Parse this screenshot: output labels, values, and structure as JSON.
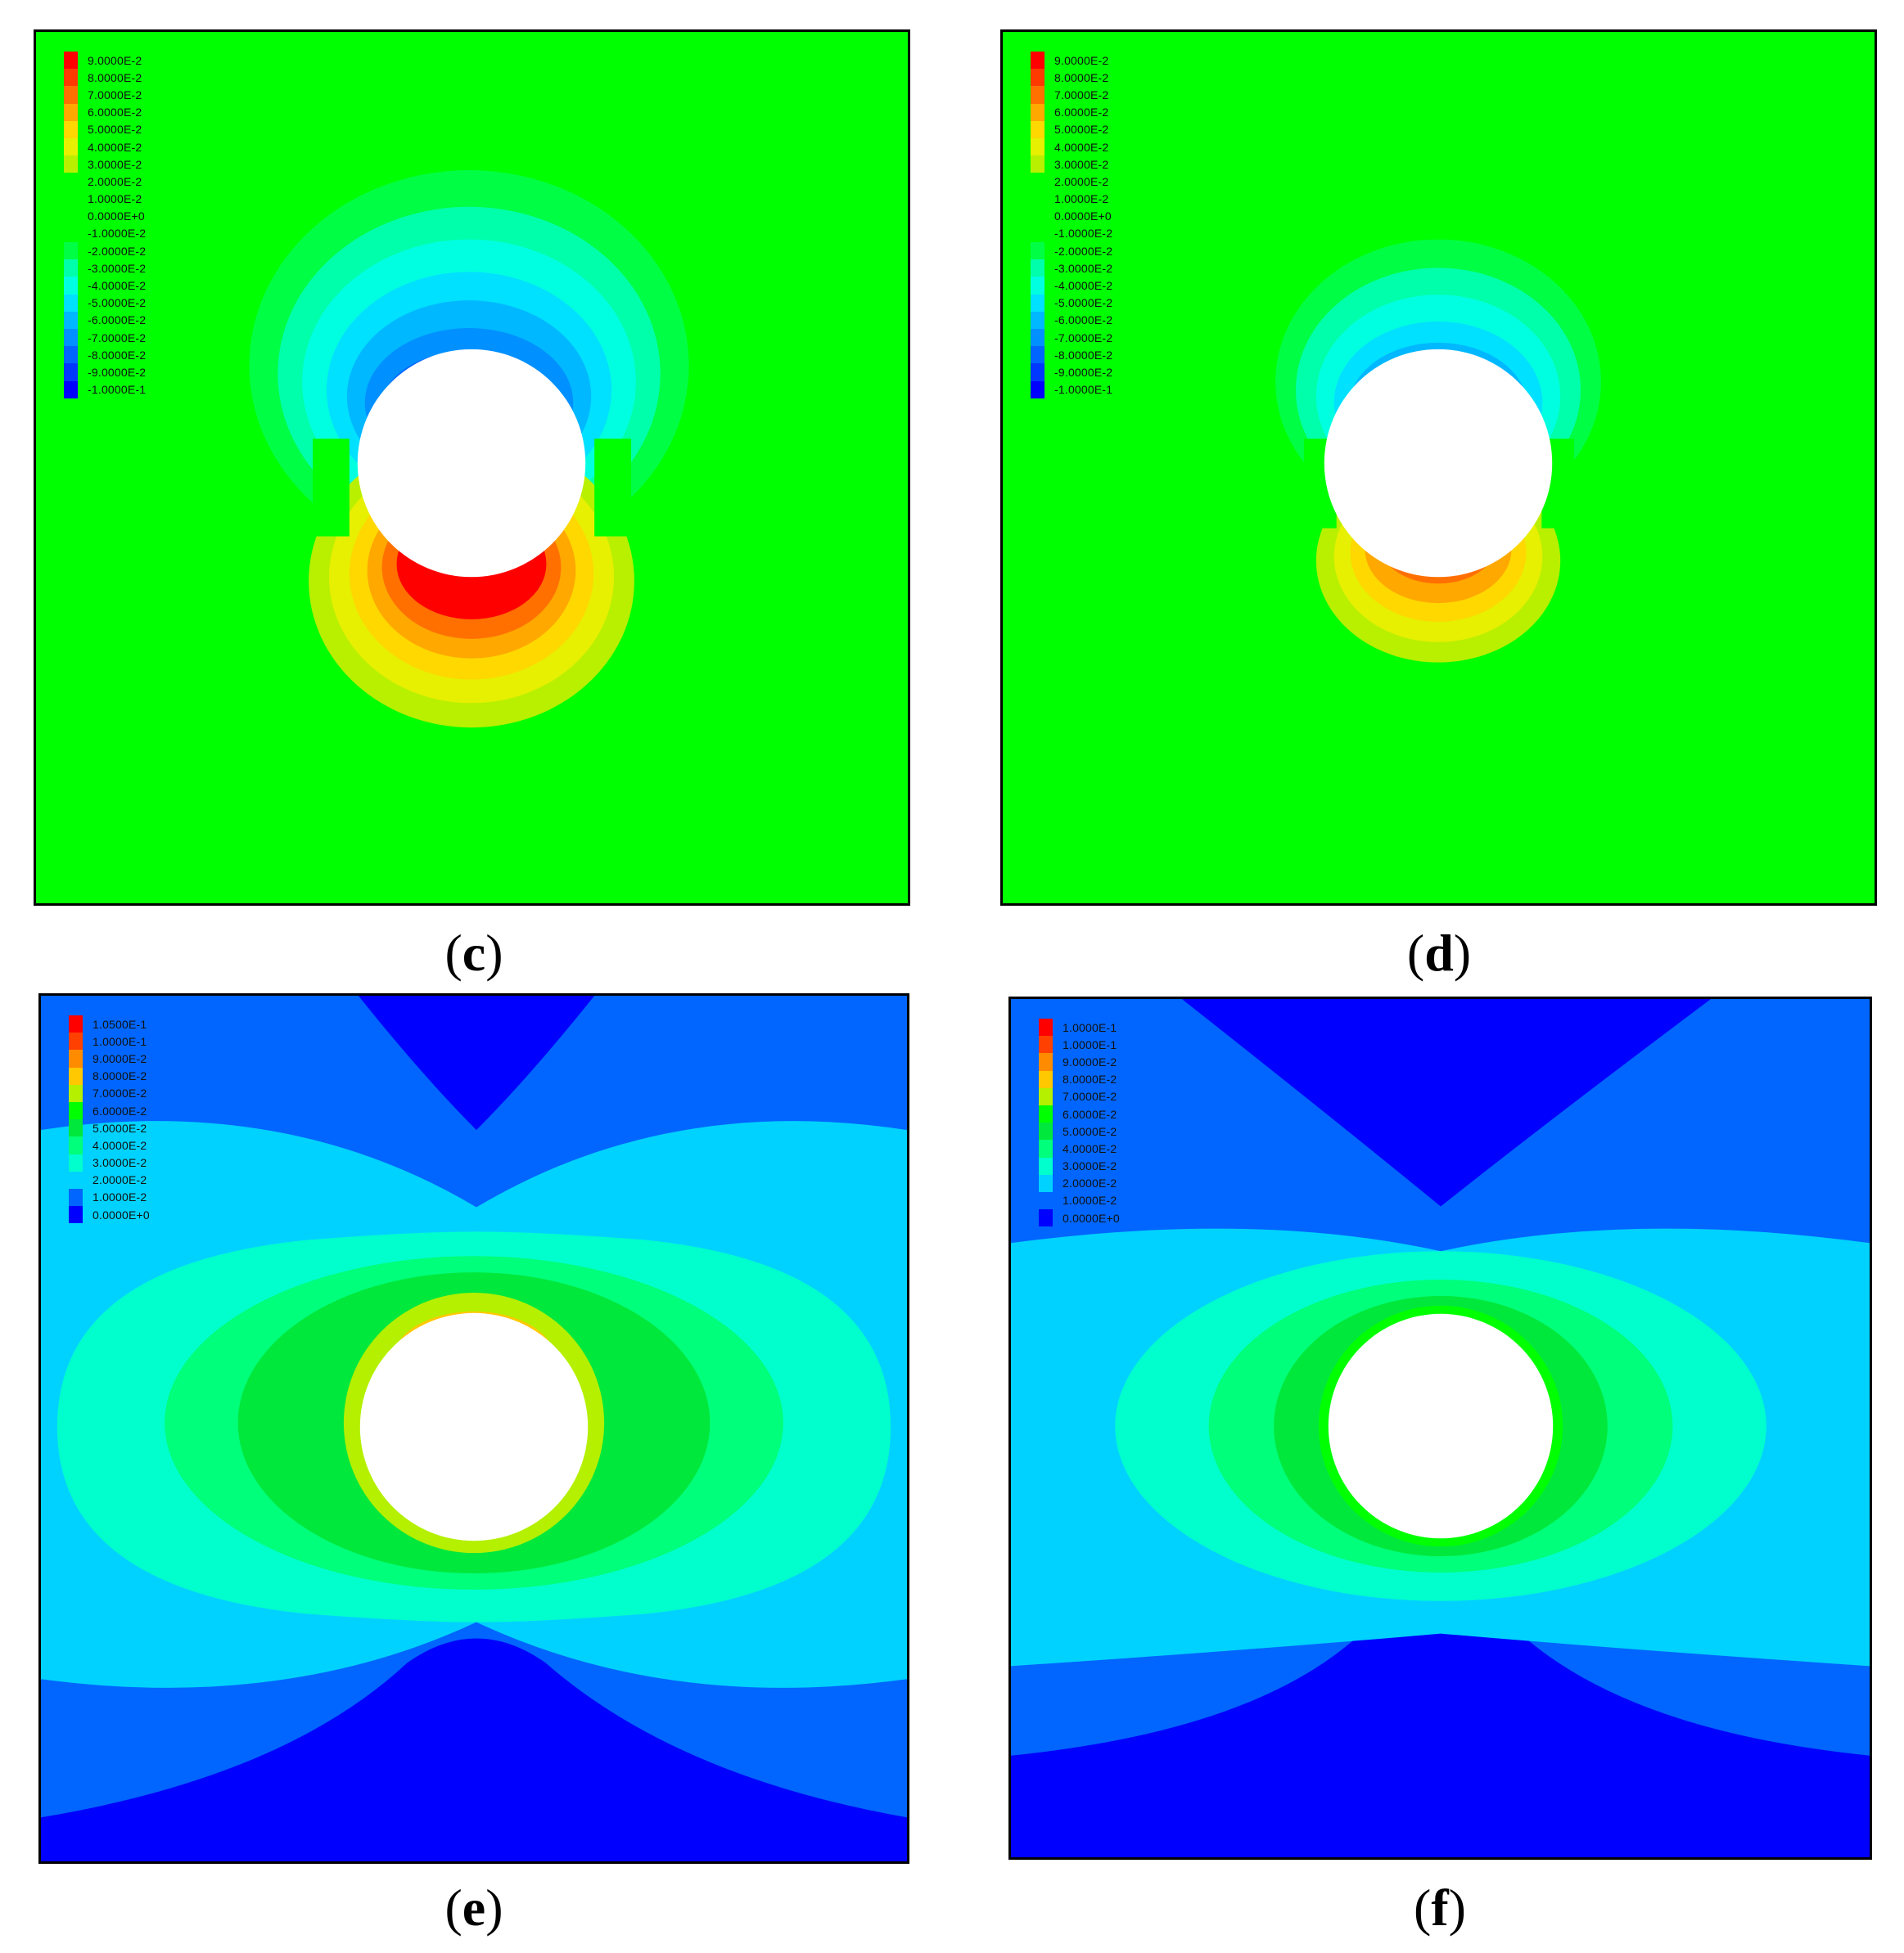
{
  "panels": [
    {
      "id": "c",
      "caption_letter": "c",
      "legend": [
        {
          "label": "9.0000E-2",
          "color": "#ff0000"
        },
        {
          "label": "8.0000E-2",
          "color": "#ff3a00"
        },
        {
          "label": "7.0000E-2",
          "color": "#ff7000"
        },
        {
          "label": "6.0000E-2",
          "color": "#ffa800"
        },
        {
          "label": "5.0000E-2",
          "color": "#ffd800"
        },
        {
          "label": "4.0000E-2",
          "color": "#e6f000"
        },
        {
          "label": "3.0000E-2",
          "color": "#b8f000"
        },
        {
          "label": "2.0000E-2",
          "color": "#00ff00"
        },
        {
          "label": "1.0000E-2",
          "color": "#00ff00"
        },
        {
          "label": "0.0000E+0",
          "color": "#00ff00"
        },
        {
          "label": "-1.0000E-2",
          "color": "#00ff00"
        },
        {
          "label": "-2.0000E-2",
          "color": "#00ff44"
        },
        {
          "label": "-3.0000E-2",
          "color": "#00ffaa"
        },
        {
          "label": "-4.0000E-2",
          "color": "#00ffe0"
        },
        {
          "label": "-5.0000E-2",
          "color": "#00e0ff"
        },
        {
          "label": "-6.0000E-2",
          "color": "#00b8ff"
        },
        {
          "label": "-7.0000E-2",
          "color": "#0090ff"
        },
        {
          "label": "-8.0000E-2",
          "color": "#0064ff"
        },
        {
          "label": "-9.0000E-2",
          "color": "#0038ff"
        },
        {
          "label": "-1.0000E-1",
          "color": "#0000ff"
        }
      ]
    },
    {
      "id": "d",
      "caption_letter": "d",
      "legend": [
        {
          "label": "9.0000E-2",
          "color": "#ff0000"
        },
        {
          "label": "8.0000E-2",
          "color": "#ff3a00"
        },
        {
          "label": "7.0000E-2",
          "color": "#ff7000"
        },
        {
          "label": "6.0000E-2",
          "color": "#ffa800"
        },
        {
          "label": "5.0000E-2",
          "color": "#ffd800"
        },
        {
          "label": "4.0000E-2",
          "color": "#e6f000"
        },
        {
          "label": "3.0000E-2",
          "color": "#b8f000"
        },
        {
          "label": "2.0000E-2",
          "color": "#00ff00"
        },
        {
          "label": "1.0000E-2",
          "color": "#00ff00"
        },
        {
          "label": "0.0000E+0",
          "color": "#00ff00"
        },
        {
          "label": "-1.0000E-2",
          "color": "#00ff00"
        },
        {
          "label": "-2.0000E-2",
          "color": "#00ff44"
        },
        {
          "label": "-3.0000E-2",
          "color": "#00ffaa"
        },
        {
          "label": "-4.0000E-2",
          "color": "#00ffe0"
        },
        {
          "label": "-5.0000E-2",
          "color": "#00e0ff"
        },
        {
          "label": "-6.0000E-2",
          "color": "#00b8ff"
        },
        {
          "label": "-7.0000E-2",
          "color": "#0090ff"
        },
        {
          "label": "-8.0000E-2",
          "color": "#0064ff"
        },
        {
          "label": "-9.0000E-2",
          "color": "#0038ff"
        },
        {
          "label": "-1.0000E-1",
          "color": "#0000ff"
        }
      ]
    },
    {
      "id": "e",
      "caption_letter": "e",
      "legend": [
        {
          "label": "1.0500E-1",
          "color": "#ff0000"
        },
        {
          "label": "1.0000E-1",
          "color": "#ff4000"
        },
        {
          "label": "9.0000E-2",
          "color": "#ff8c00"
        },
        {
          "label": "8.0000E-2",
          "color": "#ffc800"
        },
        {
          "label": "7.0000E-2",
          "color": "#b4f000"
        },
        {
          "label": "6.0000E-2",
          "color": "#00ff00"
        },
        {
          "label": "5.0000E-2",
          "color": "#00e83c"
        },
        {
          "label": "4.0000E-2",
          "color": "#00ff7a"
        },
        {
          "label": "3.0000E-2",
          "color": "#00ffcc"
        },
        {
          "label": "2.0000E-2",
          "color": "#00d2ff"
        },
        {
          "label": "1.0000E-2",
          "color": "#0066ff"
        },
        {
          "label": "0.0000E+0",
          "color": "#0000ff"
        }
      ]
    },
    {
      "id": "f",
      "caption_letter": "f",
      "legend": [
        {
          "label": "1.0000E-1",
          "color": "#ff0000"
        },
        {
          "label": "1.0000E-1",
          "color": "#ff4000"
        },
        {
          "label": "9.0000E-2",
          "color": "#ff8c00"
        },
        {
          "label": "8.0000E-2",
          "color": "#ffc800"
        },
        {
          "label": "7.0000E-2",
          "color": "#b4f000"
        },
        {
          "label": "6.0000E-2",
          "color": "#00ff00"
        },
        {
          "label": "5.0000E-2",
          "color": "#00e83c"
        },
        {
          "label": "4.0000E-2",
          "color": "#00ff7a"
        },
        {
          "label": "3.0000E-2",
          "color": "#00ffcc"
        },
        {
          "label": "2.0000E-2",
          "color": "#00d2ff"
        },
        {
          "label": "1.0000E-2",
          "color": "#0066ff"
        },
        {
          "label": "0.0000E+0",
          "color": "#0000ff"
        }
      ]
    }
  ]
}
